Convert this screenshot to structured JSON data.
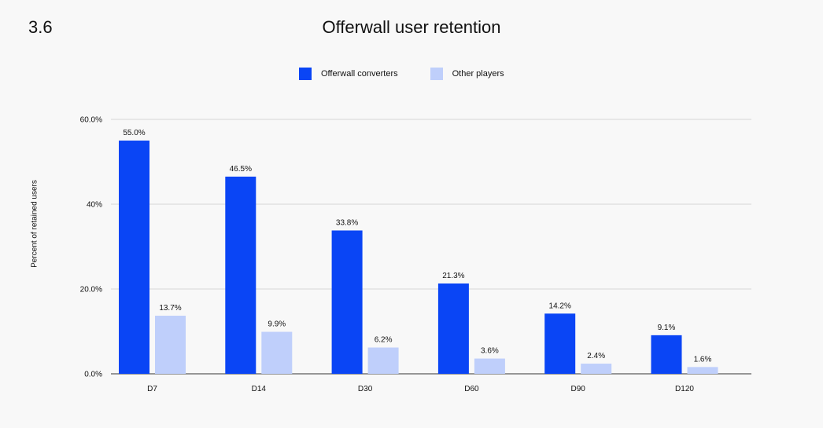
{
  "section_number": "3.6",
  "colors": {
    "offerwall": "#0a45f5",
    "other": "#bfcffb",
    "grid": "#d6d6d6",
    "axis": "#333333"
  },
  "chart_data": {
    "type": "bar",
    "title": "Offerwall user retention",
    "xlabel": "",
    "ylabel": "Percent of retained users",
    "categories": [
      "D7",
      "D14",
      "D30",
      "D60",
      "D90",
      "D120"
    ],
    "series": [
      {
        "name": "Offerwall converters",
        "values": [
          55.0,
          46.5,
          33.8,
          21.3,
          14.2,
          9.1
        ],
        "labels": [
          "55.0%",
          "46.5%",
          "33.8%",
          "21.3%",
          "14.2%",
          "9.1%"
        ]
      },
      {
        "name": "Other players",
        "values": [
          13.7,
          9.9,
          6.2,
          3.6,
          2.4,
          1.6
        ],
        "labels": [
          "13.7%",
          "9.9%",
          "6.2%",
          "3.6%",
          "2.4%",
          "1.6%"
        ]
      }
    ],
    "yticks": [
      0,
      20,
      40,
      60
    ],
    "ytick_labels": [
      "0.0%",
      "20.0%",
      "40%",
      "60.0%"
    ],
    "ylim": [
      0,
      60
    ],
    "grid": true,
    "legend_position": "top-center"
  }
}
